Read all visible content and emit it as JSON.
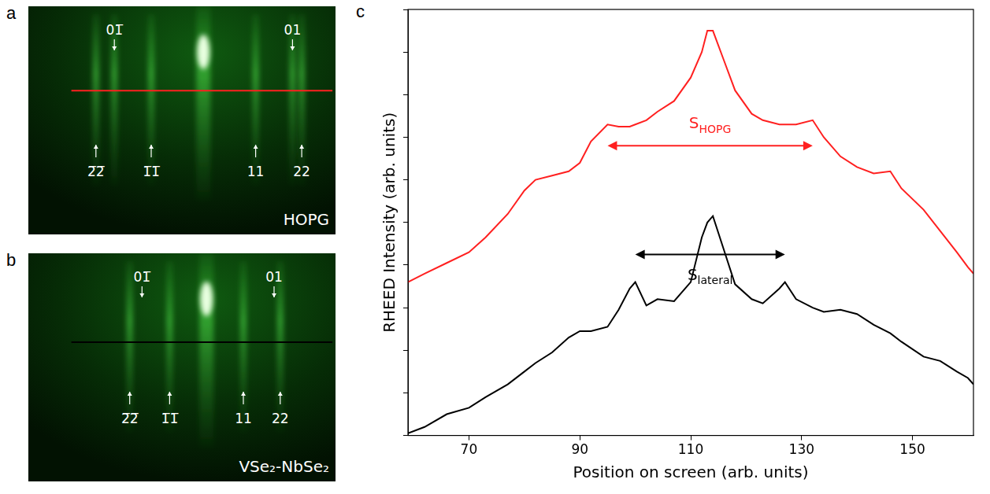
{
  "panels": [
    {
      "letter": "a",
      "caption": "HOPG",
      "top_labels": [
        "01̅",
        "01"
      ],
      "bottom_labels": [
        "2̅2̅",
        "1̅1̅",
        "11",
        "22"
      ]
    },
    {
      "letter": "b",
      "caption": "VSe₂-NbSe₂",
      "top_labels": [
        "01̅",
        "01"
      ],
      "bottom_labels": [
        "2̅2̅",
        "1̅1̅",
        "11",
        "22"
      ]
    }
  ],
  "chart_data": {
    "letter": "c",
    "type": "line",
    "x_label": "Position on screen (arb. units)",
    "y_label": "RHEED Intensity (arb. units)",
    "x": [
      59,
      62,
      66,
      70,
      73,
      77,
      80,
      82,
      85,
      88,
      90,
      92,
      95,
      97,
      99,
      100,
      102,
      104,
      107,
      110,
      112,
      113,
      114,
      116,
      118,
      121,
      123,
      126,
      127,
      129,
      132,
      134,
      137,
      140,
      143,
      146,
      148,
      152,
      155,
      158,
      160,
      161
    ],
    "series": [
      {
        "color": "#ff2020",
        "values": [
          3.6,
          3.8,
          4.05,
          4.3,
          4.65,
          5.2,
          5.75,
          6.0,
          6.1,
          6.2,
          6.4,
          6.9,
          7.3,
          7.25,
          7.25,
          7.3,
          7.4,
          7.6,
          7.85,
          8.4,
          9.0,
          9.5,
          9.5,
          8.8,
          8.1,
          7.55,
          7.4,
          7.3,
          7.3,
          7.3,
          7.4,
          7.0,
          6.55,
          6.3,
          6.15,
          6.2,
          5.8,
          5.3,
          4.8,
          4.3,
          3.95,
          3.8
        ]
      },
      {
        "color": "#000000",
        "values": [
          0.05,
          0.2,
          0.5,
          0.65,
          0.9,
          1.2,
          1.5,
          1.7,
          1.95,
          2.3,
          2.45,
          2.45,
          2.55,
          2.95,
          3.45,
          3.6,
          3.05,
          3.2,
          3.15,
          3.6,
          4.65,
          5.0,
          5.15,
          4.35,
          3.55,
          3.2,
          3.1,
          3.45,
          3.6,
          3.2,
          3.0,
          2.9,
          2.95,
          2.85,
          2.6,
          2.4,
          2.2,
          1.85,
          1.75,
          1.5,
          1.35,
          1.2
        ]
      }
    ],
    "xlim": [
      59,
      161
    ],
    "xticks": [
      70,
      90,
      110,
      130,
      150
    ],
    "ylim": [
      0,
      10
    ],
    "yticks": [
      0,
      1,
      2,
      3,
      4,
      5,
      6,
      7,
      8,
      9,
      10
    ],
    "tick_labels": "x",
    "grid": false,
    "annotations": [
      {
        "text": "S",
        "subscript": "HOPG",
        "color": "#ff2020",
        "x_start": 95,
        "x_end": 132,
        "y": 6.8,
        "text_y": 7.3
      },
      {
        "text": "S",
        "subscript": "lateral",
        "color": "#000000",
        "x_start": 100,
        "x_end": 127,
        "y": 4.25,
        "text_y": 3.75
      }
    ]
  }
}
